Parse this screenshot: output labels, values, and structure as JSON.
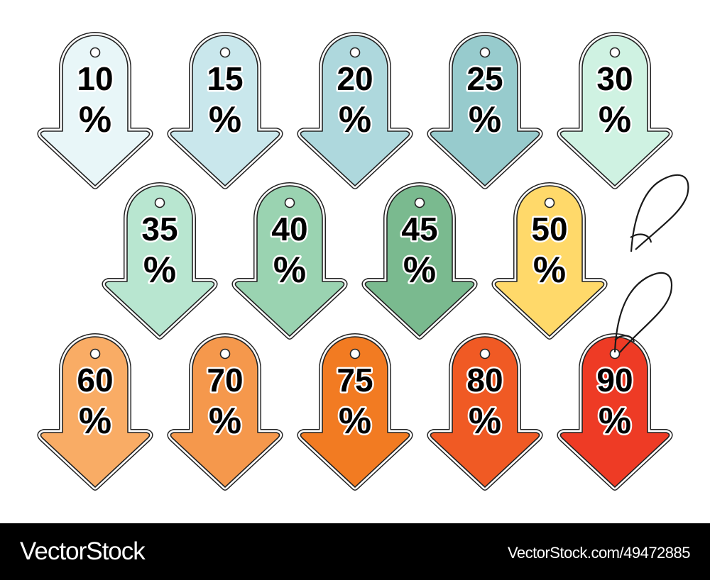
{
  "tags": [
    {
      "number": "10",
      "unit": "%",
      "color": "#e8f6f8",
      "row": 0,
      "col": 0
    },
    {
      "number": "15",
      "unit": "%",
      "color": "#c9e7ec",
      "row": 0,
      "col": 1
    },
    {
      "number": "20",
      "unit": "%",
      "color": "#aed8dd",
      "row": 0,
      "col": 2
    },
    {
      "number": "25",
      "unit": "%",
      "color": "#97cbcd",
      "row": 0,
      "col": 3
    },
    {
      "number": "30",
      "unit": "%",
      "color": "#cff2e2",
      "row": 0,
      "col": 4
    },
    {
      "number": "35",
      "unit": "%",
      "color": "#b8e6d0",
      "row": 1,
      "col": 0
    },
    {
      "number": "40",
      "unit": "%",
      "color": "#9ad3b1",
      "row": 1,
      "col": 1
    },
    {
      "number": "45",
      "unit": "%",
      "color": "#7aba8f",
      "row": 1,
      "col": 2
    },
    {
      "number": "50",
      "unit": "%",
      "color": "#ffd96a",
      "row": 1,
      "col": 3
    },
    {
      "number": "60",
      "unit": "%",
      "color": "#f9ac65",
      "row": 2,
      "col": 0
    },
    {
      "number": "70",
      "unit": "%",
      "color": "#f5984c",
      "row": 2,
      "col": 1
    },
    {
      "number": "75",
      "unit": "%",
      "color": "#f27b22",
      "row": 2,
      "col": 2
    },
    {
      "number": "80",
      "unit": "%",
      "color": "#f05a24",
      "row": 2,
      "col": 3
    },
    {
      "number": "90",
      "unit": "%",
      "color": "#ee3b25",
      "row": 2,
      "col": 4
    }
  ],
  "footer": {
    "brand": "VectorStock",
    "brand_mark": "®",
    "url": "VectorStock.com/49472885"
  }
}
